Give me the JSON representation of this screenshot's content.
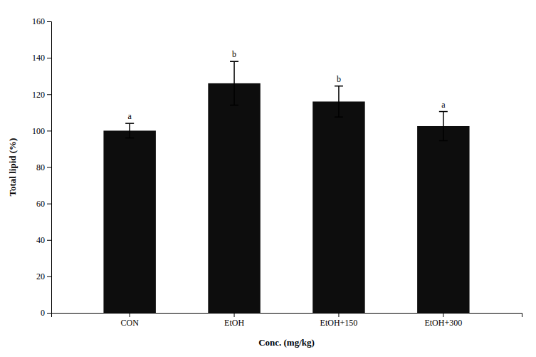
{
  "chart_data": {
    "type": "bar",
    "categories": [
      "CON",
      "EtOH",
      "EtOH+150",
      "EtOH+300"
    ],
    "values": [
      100.0,
      126.0,
      116.0,
      102.5
    ],
    "errors": [
      4.0,
      12.0,
      8.5,
      8.0
    ],
    "annotations": [
      "a",
      "b",
      "b",
      "a"
    ],
    "color": "#0d0d0d",
    "xlabel": "Conc. (mg/kg)",
    "ylabel": "Total lipid (%)",
    "ylim": [
      0,
      160
    ],
    "yticks": [
      0,
      20,
      40,
      60,
      80,
      100,
      120,
      140,
      160
    ],
    "grid": false
  }
}
